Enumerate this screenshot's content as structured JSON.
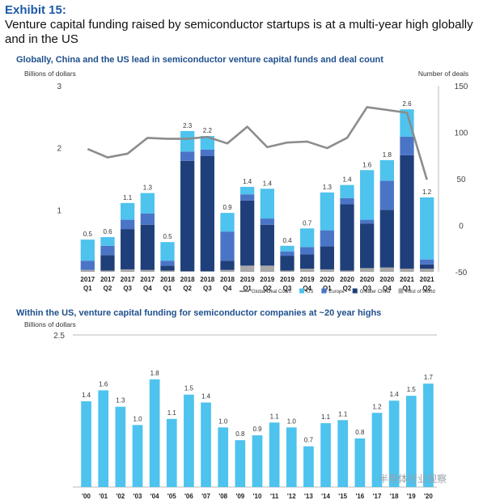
{
  "header": {
    "exhibit": "Exhibit 15:",
    "headline": "Venture capital funding raised by semiconductor startups is at a multi-year high globally and in the US"
  },
  "watermark": "半导体行业观察",
  "chart_data": [
    {
      "type": "bar",
      "stacked": true,
      "title": "Globally, China and the US lead in semiconductor venture capital funds and deal count",
      "ylabel": "Billions of dollars",
      "y2label": "Number of deals",
      "ylim": [
        0,
        3
      ],
      "y2lim": [
        -50,
        150
      ],
      "yticks": [
        1,
        2,
        3
      ],
      "y2ticks": [
        -50,
        0,
        50,
        100,
        150
      ],
      "categories": [
        [
          "2017",
          "Q1"
        ],
        [
          "2017",
          "Q2"
        ],
        [
          "2017",
          "Q3"
        ],
        [
          "2017",
          "Q4"
        ],
        [
          "2018",
          "Q1"
        ],
        [
          "2018",
          "Q2"
        ],
        [
          "2018",
          "Q3"
        ],
        [
          "2018",
          "Q4"
        ],
        [
          "2019",
          "Q1"
        ],
        [
          "2019",
          "Q2"
        ],
        [
          "2019",
          "Q3"
        ],
        [
          "2019",
          "Q4"
        ],
        [
          "2020",
          "Q1"
        ],
        [
          "2020",
          "Q2"
        ],
        [
          "2020",
          "Q3"
        ],
        [
          "2020",
          "Q4"
        ],
        [
          "2021",
          "Q1"
        ],
        [
          "2021",
          "Q2"
        ]
      ],
      "totals": [
        "0.5",
        "0.6",
        "1.1",
        "1.3",
        "0.5",
        "2.3",
        "2.2",
        "0.9",
        "1.4",
        "1.4",
        "0.4",
        "0.7",
        "1.3",
        "1.4",
        "1.6",
        "1.8",
        "2.6",
        "1.2"
      ],
      "series": [
        {
          "name": "Rest of World",
          "color": "#a9a9a9",
          "values": [
            0.03,
            0.02,
            0.04,
            0.03,
            0.02,
            0.01,
            0.01,
            0.03,
            0.1,
            0.1,
            0.02,
            0.05,
            0.04,
            0.02,
            0.06,
            0.07,
            0.05,
            0.05
          ]
        },
        {
          "name": "Greater China",
          "color": "#1f3f7a",
          "values": [
            0.0,
            0.25,
            0.65,
            0.73,
            0.08,
            1.78,
            1.86,
            0.15,
            1.05,
            0.66,
            0.24,
            0.23,
            0.37,
            1.07,
            0.72,
            0.93,
            1.83,
            0.07
          ]
        },
        {
          "name": "Europe",
          "color": "#4a75c7",
          "values": [
            0.15,
            0.15,
            0.15,
            0.18,
            0.08,
            0.15,
            0.1,
            0.47,
            0.1,
            0.1,
            0.07,
            0.12,
            0.26,
            0.1,
            0.06,
            0.47,
            0.3,
            0.08
          ]
        },
        {
          "name": "US",
          "color": "#4dc3ee",
          "values": [
            0.34,
            0.14,
            0.27,
            0.33,
            0.3,
            0.33,
            0.22,
            0.3,
            0.12,
            0.48,
            0.09,
            0.3,
            0.61,
            0.21,
            0.8,
            0.33,
            0.44,
            1.0
          ]
        }
      ],
      "line": {
        "name": "Global Deal Count",
        "color": "#8c8c8c",
        "values": [
          82,
          73,
          77,
          94,
          93,
          93,
          95,
          88,
          106,
          84,
          89,
          90,
          83,
          94,
          127,
          124,
          121,
          49
        ]
      }
    },
    {
      "type": "bar",
      "title": "Within the US, venture capital funding for semiconductor companies at ~20 year highs",
      "ylabel": "Billions of dollars",
      "ylim": [
        0,
        2.5
      ],
      "yticks": [
        2.5
      ],
      "color": "#4dc3ee",
      "categories": [
        "'00",
        "'01",
        "'02",
        "'03",
        "'04",
        "'05",
        "'06",
        "'07",
        "'08",
        "'09",
        "'10",
        "'11",
        "'12",
        "'13",
        "'14",
        "'15",
        "'16",
        "'17",
        "'18",
        "'19",
        "'20"
      ],
      "labels": [
        "1.4",
        "1.6",
        "1.3",
        "1.0",
        "1.8",
        "1.1",
        "1.5",
        "1.4",
        "1.0",
        "0.8",
        "0.9",
        "1.1",
        "1.0",
        "0.7",
        "1.1",
        "1.1",
        "0.8",
        "1.2",
        "1.4",
        "1.5",
        "1.7"
      ],
      "values": [
        1.41,
        1.59,
        1.32,
        1.02,
        1.77,
        1.12,
        1.52,
        1.39,
        0.98,
        0.77,
        0.85,
        1.06,
        0.98,
        0.67,
        1.05,
        1.1,
        0.8,
        1.22,
        1.42,
        1.5,
        1.7
      ]
    }
  ]
}
